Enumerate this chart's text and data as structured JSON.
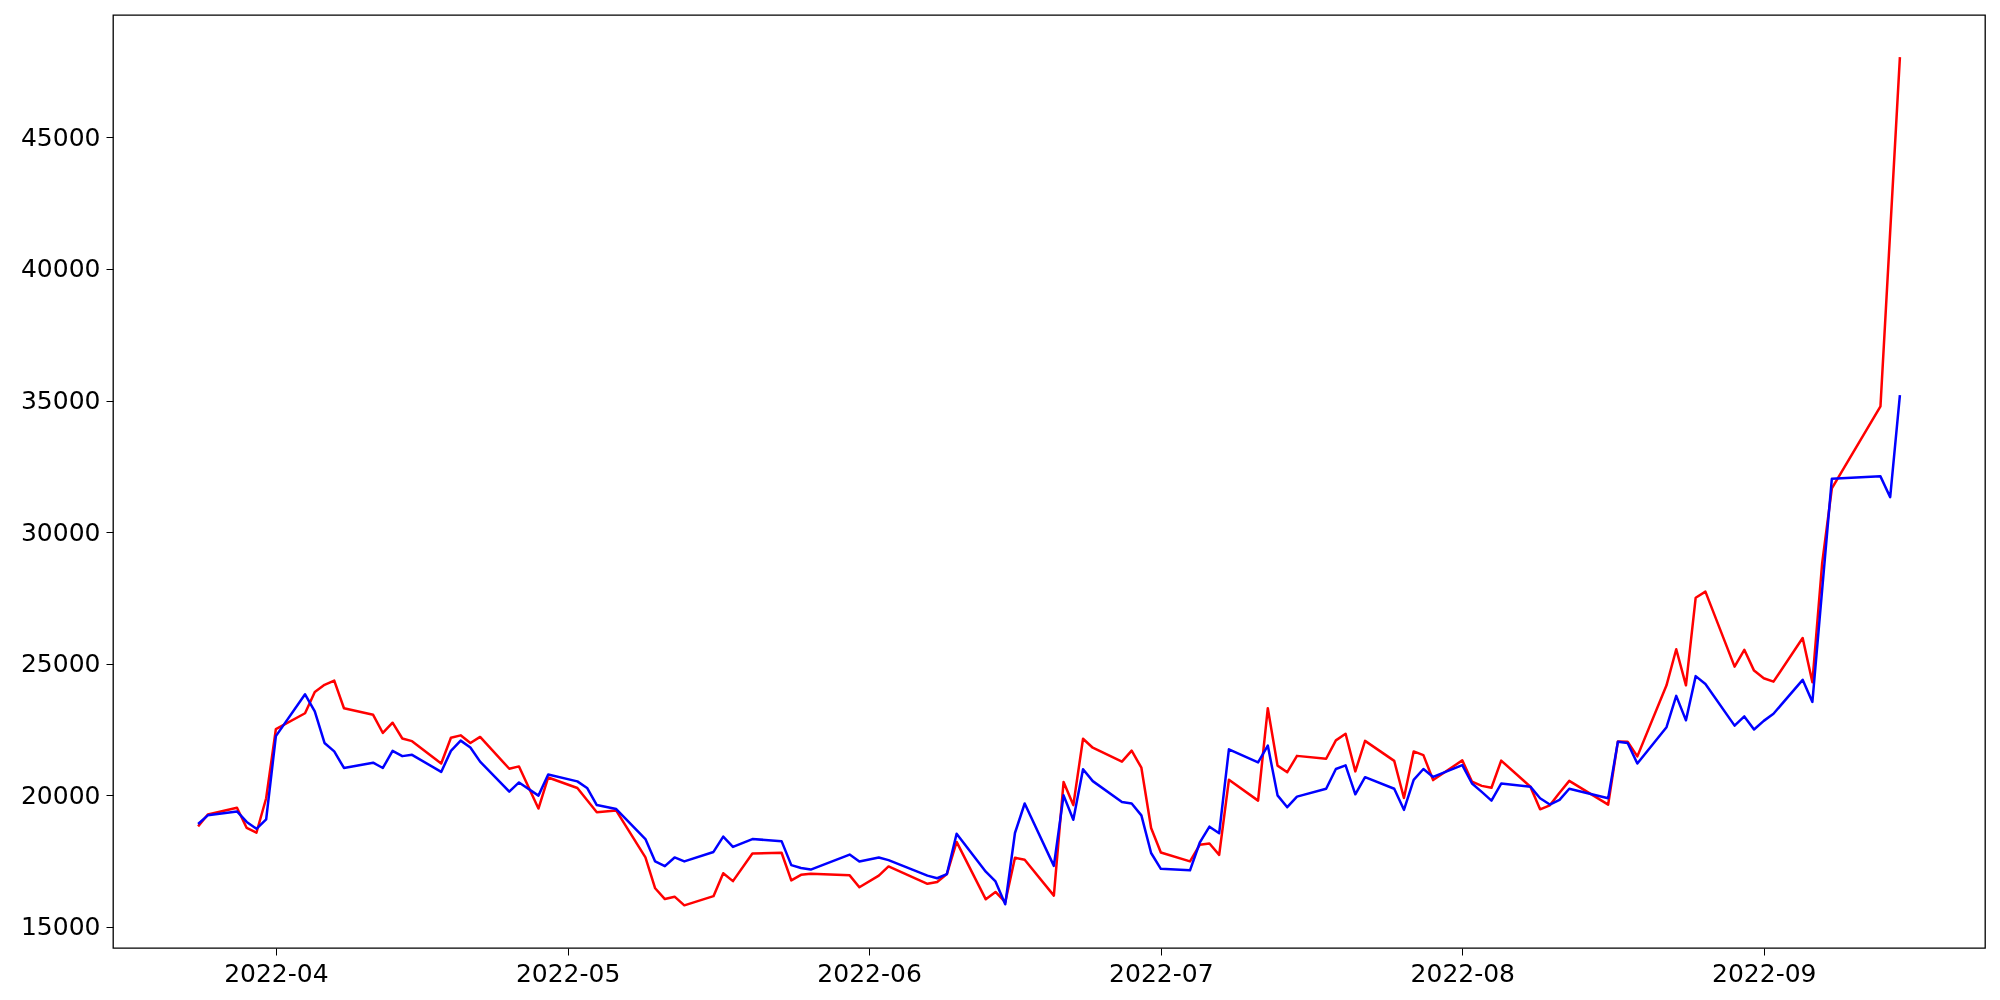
{
  "chart_data": {
    "type": "line",
    "xlim": [
      "2022-03-15T06:00",
      "2022-09-23T18:00"
    ],
    "ylim": [
      14200,
      49650
    ],
    "xticks": [
      {
        "value": "2022-04-01",
        "label": "2022-04"
      },
      {
        "value": "2022-05-01",
        "label": "2022-05"
      },
      {
        "value": "2022-06-01",
        "label": "2022-06"
      },
      {
        "value": "2022-07-01",
        "label": "2022-07"
      },
      {
        "value": "2022-08-01",
        "label": "2022-08"
      },
      {
        "value": "2022-09-01",
        "label": "2022-09"
      }
    ],
    "yticks": [
      15000,
      20000,
      25000,
      30000,
      35000,
      40000,
      45000
    ],
    "grid": false,
    "series": [
      {
        "color": "#ff0000",
        "x": [
          "2022-03-24",
          "2022-03-25",
          "2022-03-28",
          "2022-03-29",
          "2022-03-30",
          "2022-03-31",
          "2022-04-01",
          "2022-04-04",
          "2022-04-05",
          "2022-04-06",
          "2022-04-07",
          "2022-04-08",
          "2022-04-11",
          "2022-04-12",
          "2022-04-13",
          "2022-04-14",
          "2022-04-15",
          "2022-04-18",
          "2022-04-19",
          "2022-04-20",
          "2022-04-21",
          "2022-04-22",
          "2022-04-25",
          "2022-04-26",
          "2022-04-28",
          "2022-04-29",
          "2022-05-02",
          "2022-05-04",
          "2022-05-06",
          "2022-05-09",
          "2022-05-10",
          "2022-05-11",
          "2022-05-12",
          "2022-05-13",
          "2022-05-16",
          "2022-05-17",
          "2022-05-18",
          "2022-05-20",
          "2022-05-23",
          "2022-05-24",
          "2022-05-25",
          "2022-05-26",
          "2022-05-30",
          "2022-05-31",
          "2022-06-02",
          "2022-06-03",
          "2022-06-07",
          "2022-06-08",
          "2022-06-09",
          "2022-06-10",
          "2022-06-13",
          "2022-06-14",
          "2022-06-15",
          "2022-06-16",
          "2022-06-17",
          "2022-06-20",
          "2022-06-21",
          "2022-06-22",
          "2022-06-23",
          "2022-06-24",
          "2022-06-27",
          "2022-06-28",
          "2022-06-29",
          "2022-06-30",
          "2022-07-01",
          "2022-07-04",
          "2022-07-05",
          "2022-07-06",
          "2022-07-07",
          "2022-07-08",
          "2022-07-11",
          "2022-07-12",
          "2022-07-13",
          "2022-07-14",
          "2022-07-15",
          "2022-07-18",
          "2022-07-19",
          "2022-07-20",
          "2022-07-21",
          "2022-07-22",
          "2022-07-25",
          "2022-07-26",
          "2022-07-27",
          "2022-07-28",
          "2022-07-29",
          "2022-08-01",
          "2022-08-02",
          "2022-08-03",
          "2022-08-04",
          "2022-08-05",
          "2022-08-08",
          "2022-08-09",
          "2022-08-10",
          "2022-08-11",
          "2022-08-12",
          "2022-08-16",
          "2022-08-17",
          "2022-08-18",
          "2022-08-19",
          "2022-08-22",
          "2022-08-23",
          "2022-08-24",
          "2022-08-25",
          "2022-08-26",
          "2022-08-29",
          "2022-08-30",
          "2022-08-31",
          "2022-09-01",
          "2022-09-02",
          "2022-09-05",
          "2022-09-06",
          "2022-09-07",
          "2022-09-08",
          "2022-09-13",
          "2022-09-15"
        ],
        "values": [
          18820,
          19270,
          19530,
          18760,
          18580,
          19890,
          22520,
          23120,
          23930,
          24200,
          24360,
          23310,
          23060,
          22370,
          22760,
          22160,
          22060,
          21210,
          22190,
          22280,
          21990,
          22220,
          21010,
          21100,
          19500,
          20680,
          20280,
          19360,
          19420,
          17640,
          16470,
          16060,
          16150,
          15820,
          16170,
          17040,
          16740,
          17790,
          17820,
          16770,
          16980,
          17020,
          16960,
          16510,
          16950,
          17300,
          16640,
          16710,
          17010,
          18230,
          16050,
          16330,
          15940,
          17630,
          17550,
          16190,
          20510,
          19630,
          22150,
          21810,
          21280,
          21700,
          21050,
          18760,
          17830,
          17490,
          18120,
          18170,
          17740,
          20590,
          19800,
          23310,
          21130,
          20880,
          21500,
          21390,
          22090,
          22340,
          20910,
          22070,
          21310,
          19900,
          21670,
          21530,
          20580,
          21330,
          20520,
          20360,
          20290,
          21320,
          20330,
          19470,
          19620,
          20100,
          20550,
          19650,
          22050,
          22040,
          21480,
          24180,
          25550,
          24180,
          27510,
          27740,
          24890,
          25530,
          24740,
          24450,
          24320,
          25980,
          24300,
          28800,
          31660,
          34780,
          48050
        ]
      },
      {
        "color": "#0000ff",
        "x": [
          "2022-03-24",
          "2022-03-25",
          "2022-03-28",
          "2022-03-29",
          "2022-03-30",
          "2022-03-31",
          "2022-04-01",
          "2022-04-04",
          "2022-04-05",
          "2022-04-06",
          "2022-04-07",
          "2022-04-08",
          "2022-04-11",
          "2022-04-12",
          "2022-04-13",
          "2022-04-14",
          "2022-04-15",
          "2022-04-18",
          "2022-04-19",
          "2022-04-20",
          "2022-04-21",
          "2022-04-22",
          "2022-04-25",
          "2022-04-26",
          "2022-04-28",
          "2022-04-29",
          "2022-05-02",
          "2022-05-03",
          "2022-05-04",
          "2022-05-06",
          "2022-05-09",
          "2022-05-10",
          "2022-05-11",
          "2022-05-12",
          "2022-05-13",
          "2022-05-16",
          "2022-05-17",
          "2022-05-18",
          "2022-05-20",
          "2022-05-23",
          "2022-05-24",
          "2022-05-25",
          "2022-05-26",
          "2022-05-30",
          "2022-05-31",
          "2022-06-02",
          "2022-06-03",
          "2022-06-07",
          "2022-06-08",
          "2022-06-09",
          "2022-06-10",
          "2022-06-13",
          "2022-06-14",
          "2022-06-15",
          "2022-06-16",
          "2022-06-17",
          "2022-06-20",
          "2022-06-21",
          "2022-06-22",
          "2022-06-23",
          "2022-06-24",
          "2022-06-27",
          "2022-06-28",
          "2022-06-29",
          "2022-06-30",
          "2022-07-01",
          "2022-07-04",
          "2022-07-05",
          "2022-07-06",
          "2022-07-07",
          "2022-07-08",
          "2022-07-11",
          "2022-07-12",
          "2022-07-13",
          "2022-07-14",
          "2022-07-15",
          "2022-07-18",
          "2022-07-19",
          "2022-07-20",
          "2022-07-21",
          "2022-07-22",
          "2022-07-25",
          "2022-07-26",
          "2022-07-27",
          "2022-07-28",
          "2022-07-29",
          "2022-08-01",
          "2022-08-02",
          "2022-08-03",
          "2022-08-04",
          "2022-08-05",
          "2022-08-08",
          "2022-08-09",
          "2022-08-10",
          "2022-08-11",
          "2022-08-12",
          "2022-08-16",
          "2022-08-17",
          "2022-08-18",
          "2022-08-19",
          "2022-08-22",
          "2022-08-23",
          "2022-08-24",
          "2022-08-25",
          "2022-08-26",
          "2022-08-29",
          "2022-08-30",
          "2022-08-31",
          "2022-09-01",
          "2022-09-02",
          "2022-09-05",
          "2022-09-06",
          "2022-09-08",
          "2022-09-13",
          "2022-09-14",
          "2022-09-15"
        ],
        "values": [
          18910,
          19240,
          19390,
          18990,
          18730,
          19090,
          22250,
          23840,
          23190,
          21990,
          21670,
          21040,
          21240,
          21040,
          21690,
          21490,
          21540,
          20890,
          21690,
          22080,
          21820,
          21280,
          20140,
          20490,
          19990,
          20790,
          20530,
          20280,
          19630,
          19480,
          18340,
          17490,
          17310,
          17640,
          17490,
          17850,
          18430,
          18040,
          18340,
          18260,
          17350,
          17240,
          17180,
          17750,
          17490,
          17640,
          17540,
          16950,
          16850,
          17010,
          18540,
          17100,
          16730,
          15860,
          18570,
          19690,
          17320,
          20000,
          19070,
          20990,
          20540,
          19750,
          19690,
          19240,
          17810,
          17210,
          17150,
          18200,
          18810,
          18560,
          21750,
          21250,
          21890,
          20000,
          19550,
          19950,
          20250,
          21000,
          21140,
          20040,
          20690,
          20250,
          19450,
          20590,
          21000,
          20700,
          21150,
          20450,
          20130,
          19800,
          20450,
          20330,
          19890,
          19650,
          19830,
          20250,
          19890,
          22040,
          21990,
          21210,
          22590,
          23780,
          22850,
          24530,
          24230,
          22650,
          23000,
          22500,
          22830,
          23100,
          24390,
          23550,
          32030,
          32120,
          31330,
          35210
        ]
      }
    ]
  }
}
